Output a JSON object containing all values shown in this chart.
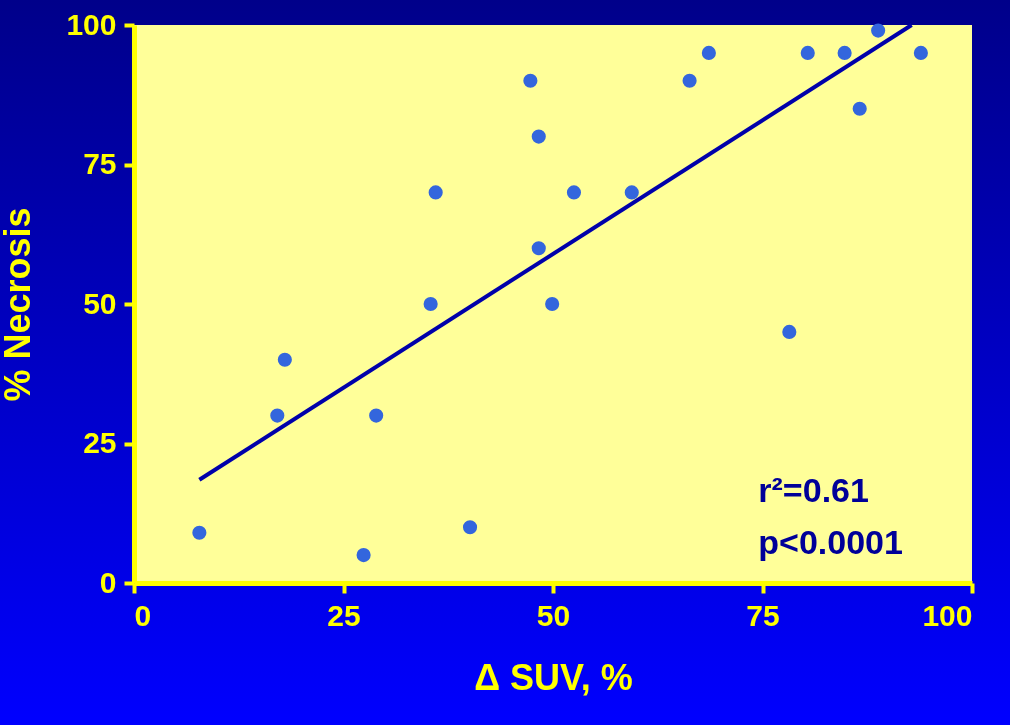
{
  "chart_data": {
    "type": "scatter",
    "xlabel": "Δ SUV, %",
    "ylabel": "% Necrosis",
    "xlim": [
      0,
      100
    ],
    "ylim": [
      0,
      100
    ],
    "xticks": [
      0,
      25,
      50,
      75,
      100
    ],
    "yticks": [
      0,
      25,
      50,
      75,
      100
    ],
    "grid": false,
    "annotations": [
      "r²=0.61",
      "p<0.0001"
    ],
    "series": [
      {
        "marker": "circle",
        "color": "#3366dd",
        "x": [
          7.8,
          17.1,
          18,
          27.4,
          28.9,
          35.4,
          36,
          40.1,
          47.3,
          48.3,
          48.3,
          49.9,
          52.5,
          59.4,
          66.3,
          68.6,
          78.2,
          80.4,
          84.8,
          86.6,
          88.8,
          93.9
        ],
        "values": [
          9,
          30,
          40,
          5,
          30,
          50,
          70,
          10,
          90,
          80,
          60,
          50,
          70,
          70,
          90,
          95,
          45,
          95,
          95,
          85,
          99,
          95
        ]
      },
      {
        "type": "line",
        "color": "#0000aa",
        "x": [
          7.8,
          92.8
        ],
        "values": [
          18.5,
          100
        ]
      }
    ]
  }
}
